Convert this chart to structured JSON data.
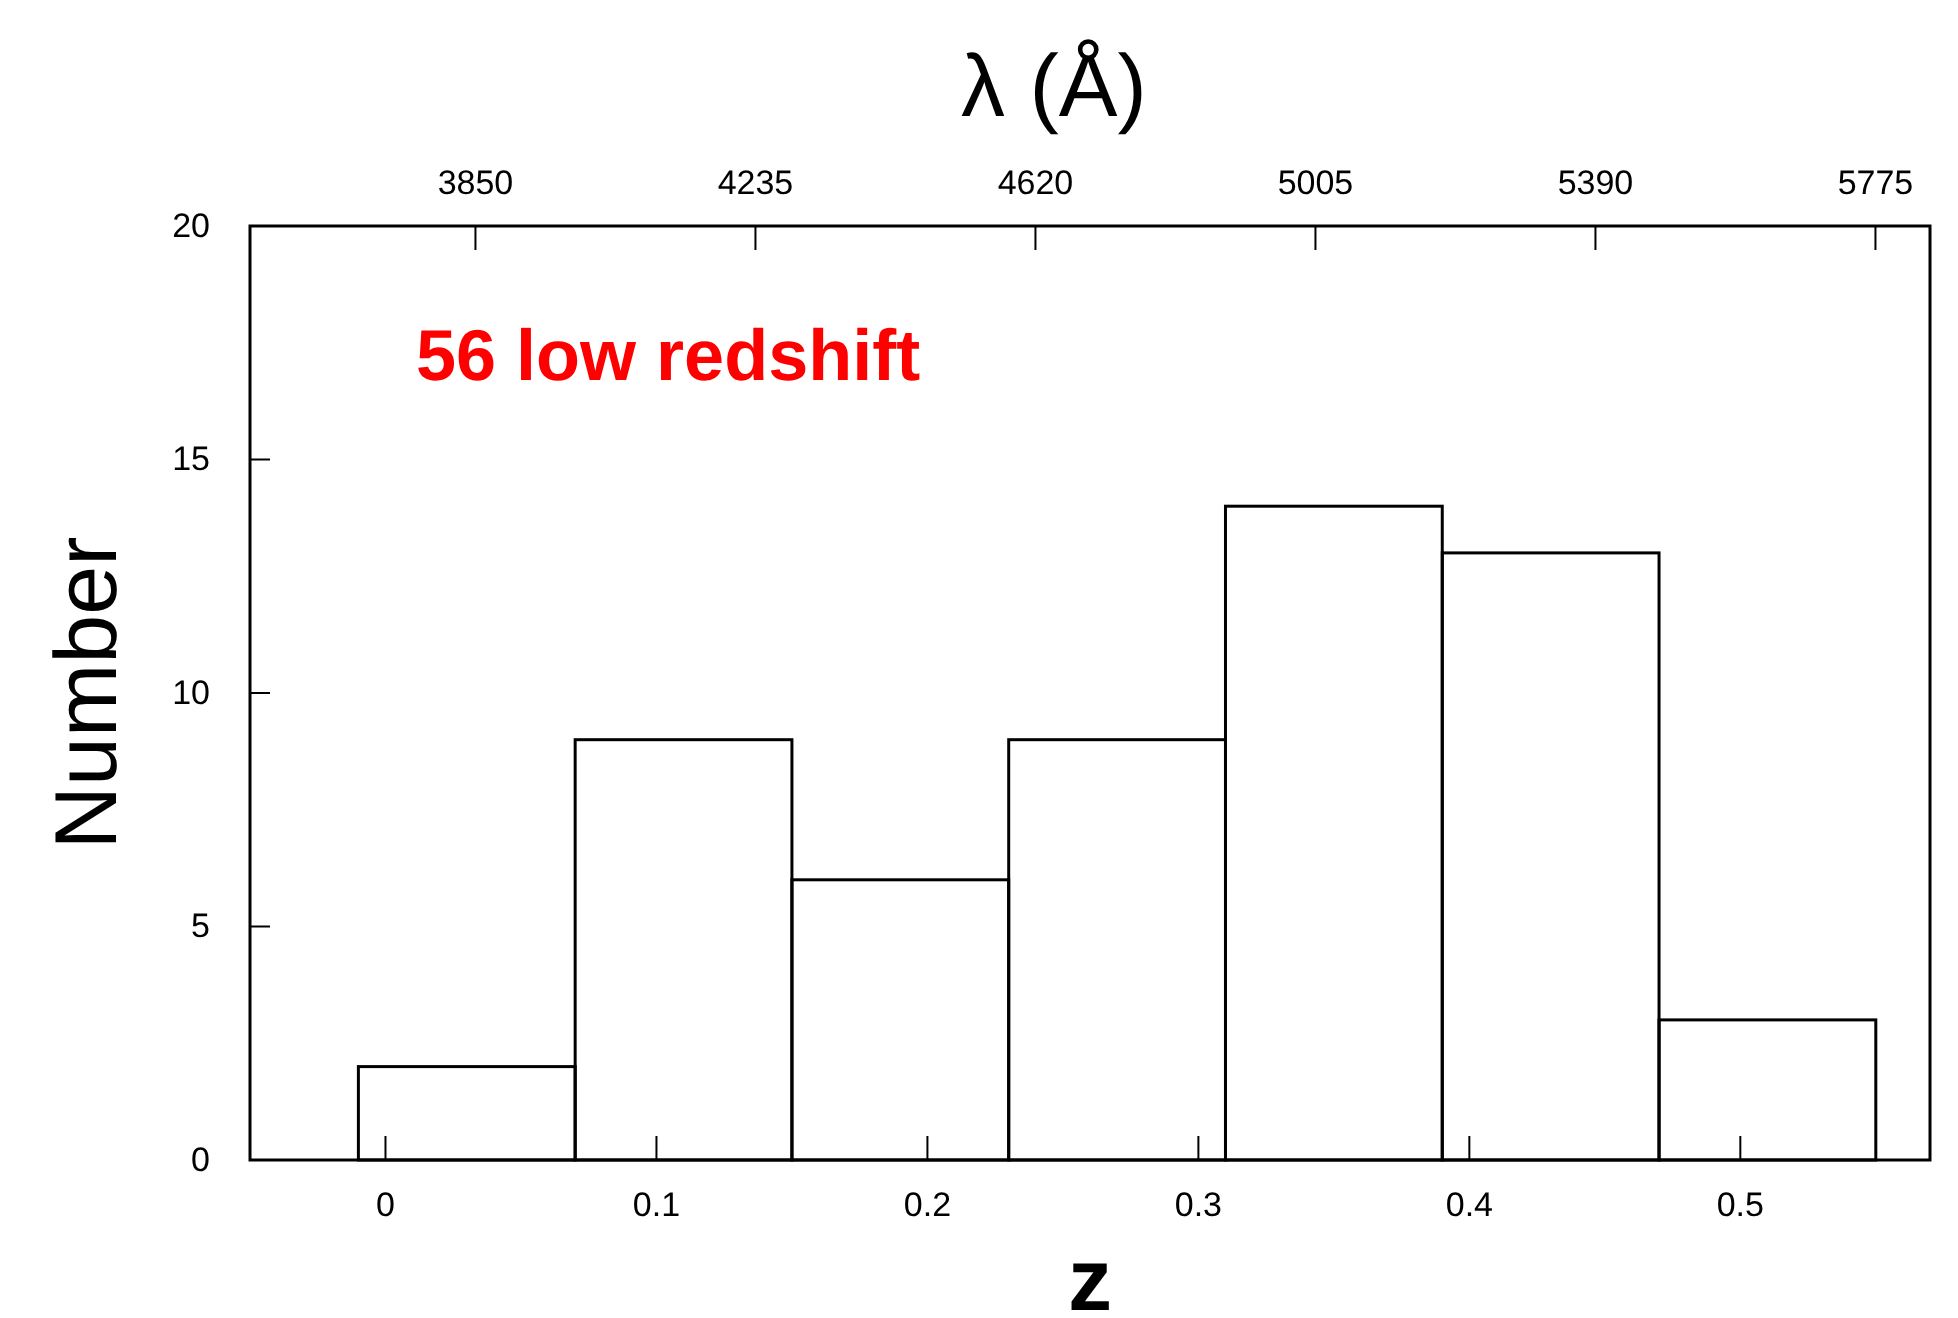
{
  "chart_data": {
    "type": "histogram",
    "bins": [
      -0.01,
      0.07,
      0.15,
      0.23,
      0.31,
      0.39,
      0.47,
      0.55
    ],
    "values": [
      2,
      9,
      6,
      9,
      14,
      13,
      3
    ],
    "color": "#000000",
    "xlabel": "z",
    "ylabel": "Number",
    "x2label": "λ (Å)",
    "xlim": [
      -0.05,
      0.57
    ],
    "xticks": [
      0,
      0.1,
      0.2,
      0.3,
      0.4,
      0.5
    ],
    "ylim": [
      0,
      20
    ],
    "yticks": [
      0,
      5,
      10,
      15,
      20
    ],
    "x2lim": [
      3540,
      5850
    ],
    "x2ticks": [
      3850,
      4235,
      4620,
      5005,
      5390,
      5775
    ],
    "annotations": [
      "56 low redshift"
    ],
    "grid": false
  }
}
